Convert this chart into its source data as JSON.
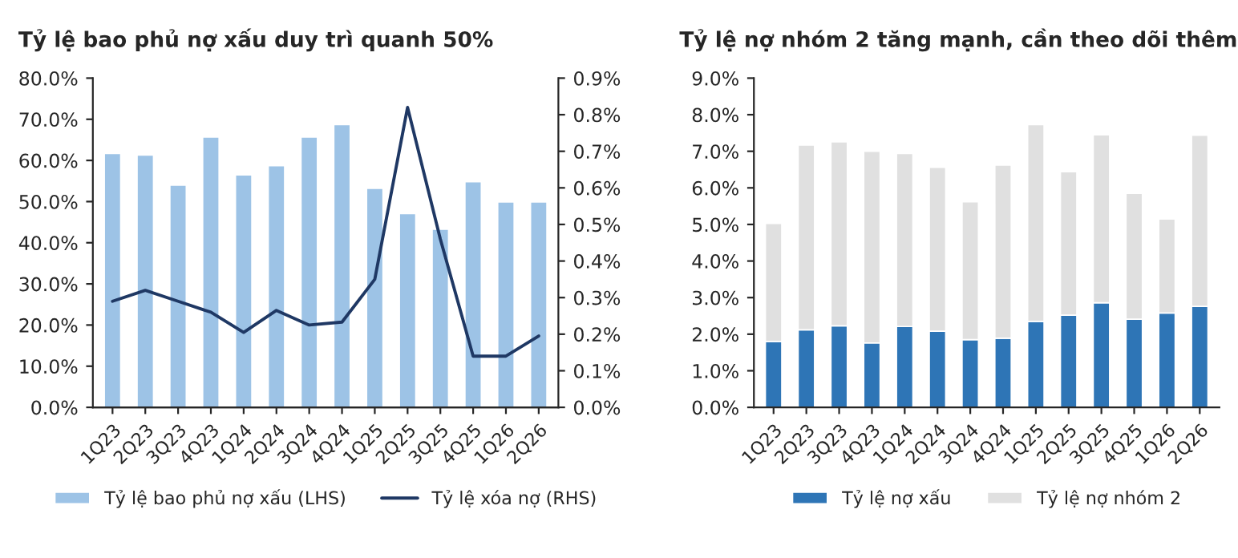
{
  "chart_data": [
    {
      "type": "bar",
      "title": "Tỷ lệ bao phủ nợ xấu duy trì quanh 50%",
      "categories": [
        "1Q23",
        "2Q23",
        "3Q23",
        "4Q23",
        "1Q24",
        "2Q24",
        "3Q24",
        "4Q24",
        "1Q25",
        "2Q25",
        "3Q25",
        "4Q25",
        "1Q26",
        "2Q26"
      ],
      "series": [
        {
          "name": "Tỷ lệ bao phủ nợ xấu (LHS)",
          "type": "bar",
          "color": "#9dc3e6",
          "values": [
            61.7,
            61.3,
            54.0,
            65.7,
            56.5,
            58.7,
            65.7,
            68.7,
            53.2,
            47.1,
            43.3,
            54.8,
            49.9,
            49.9
          ]
        },
        {
          "name": "Tỷ lệ xóa nợ (RHS)",
          "type": "line",
          "axis": "y2",
          "color": "#1f3864",
          "values": [
            0.29,
            0.32,
            0.29,
            0.26,
            0.205,
            0.265,
            0.225,
            0.233,
            0.35,
            0.82,
            0.46,
            0.14,
            0.14,
            0.195
          ]
        }
      ],
      "ylim": [
        0,
        80
      ],
      "yticks": [
        {
          "value": 0,
          "label": "0.0%"
        },
        {
          "value": 10,
          "label": "10.0%"
        },
        {
          "value": 20,
          "label": "20.0%"
        },
        {
          "value": 30,
          "label": "30.0%"
        },
        {
          "value": 40,
          "label": "40.0%"
        },
        {
          "value": 50,
          "label": "50.0%"
        },
        {
          "value": 60,
          "label": "60.0%"
        },
        {
          "value": 70,
          "label": "70.0%"
        },
        {
          "value": 80,
          "label": "80.0%"
        }
      ],
      "y2lim": [
        0,
        0.9
      ],
      "y2ticks": [
        {
          "value": 0,
          "label": "0.0%"
        },
        {
          "value": 0.1,
          "label": "0.1%"
        },
        {
          "value": 0.2,
          "label": "0.2%"
        },
        {
          "value": 0.3,
          "label": "0.3%"
        },
        {
          "value": 0.4,
          "label": "0.4%"
        },
        {
          "value": 0.5,
          "label": "0.5%"
        },
        {
          "value": 0.6,
          "label": "0.6%"
        },
        {
          "value": 0.7,
          "label": "0.7%"
        },
        {
          "value": 0.8,
          "label": "0.8%"
        },
        {
          "value": 0.9,
          "label": "0.9%"
        }
      ],
      "grid": false,
      "legend": "bottom",
      "line_style": "solid",
      "marker": "none"
    },
    {
      "type": "bar",
      "title": "Tỷ lệ nợ nhóm 2 tăng mạnh, cần theo dõi thêm",
      "stacked": true,
      "categories": [
        "1Q23",
        "2Q23",
        "3Q23",
        "4Q23",
        "1Q24",
        "2Q24",
        "3Q24",
        "4Q24",
        "1Q25",
        "2Q25",
        "3Q25",
        "4Q25",
        "1Q26",
        "2Q26"
      ],
      "series": [
        {
          "name": "Tỷ lệ nợ xấu",
          "color": "#2e75b6",
          "values": [
            1.8,
            2.12,
            2.23,
            1.76,
            2.21,
            2.08,
            1.85,
            1.89,
            2.35,
            2.52,
            2.86,
            2.41,
            2.58,
            2.76
          ]
        },
        {
          "name": "Tỷ lệ nợ nhóm 2",
          "color": "#e0e0e0",
          "values": [
            3.23,
            5.05,
            5.03,
            5.24,
            4.73,
            4.48,
            3.77,
            4.73,
            5.38,
            3.92,
            4.59,
            3.44,
            2.57,
            4.68
          ]
        }
      ],
      "ylim": [
        0,
        9
      ],
      "yticks": [
        {
          "value": 0,
          "label": "0.0%"
        },
        {
          "value": 1,
          "label": "1.0%"
        },
        {
          "value": 2,
          "label": "2.0%"
        },
        {
          "value": 3,
          "label": "3.0%"
        },
        {
          "value": 4,
          "label": "4.0%"
        },
        {
          "value": 5,
          "label": "5.0%"
        },
        {
          "value": 6,
          "label": "6.0%"
        },
        {
          "value": 7,
          "label": "7.0%"
        },
        {
          "value": 8,
          "label": "8.0%"
        },
        {
          "value": 9,
          "label": "9.0%"
        }
      ],
      "grid": false,
      "legend": "bottom"
    }
  ]
}
